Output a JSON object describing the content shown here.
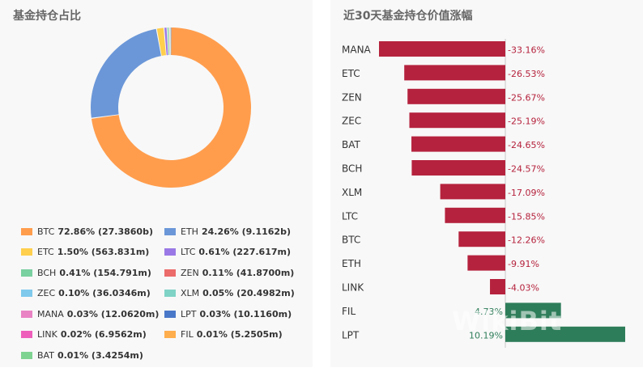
{
  "chart_data": [
    {
      "type": "pie",
      "title": "基金持仓占比",
      "slices": [
        {
          "name": "BTC",
          "percent": 72.86,
          "amount": "27.3860b",
          "color": "#ff9d4d"
        },
        {
          "name": "ETH",
          "percent": 24.26,
          "amount": "9.1162b",
          "color": "#6b97d8"
        },
        {
          "name": "ETC",
          "percent": 1.5,
          "amount": "563.831m",
          "color": "#ffcf4d"
        },
        {
          "name": "LTC",
          "percent": 0.61,
          "amount": "227.617m",
          "color": "#9a79e6"
        },
        {
          "name": "BCH",
          "percent": 0.41,
          "amount": "154.791m",
          "color": "#79d0a0"
        },
        {
          "name": "ZEN",
          "percent": 0.11,
          "amount": "41.8700m",
          "color": "#ec6b6b"
        },
        {
          "name": "ZEC",
          "percent": 0.1,
          "amount": "36.0346m",
          "color": "#7ec9ec"
        },
        {
          "name": "XLM",
          "percent": 0.05,
          "amount": "20.4982m",
          "color": "#7fd3c6"
        },
        {
          "name": "MANA",
          "percent": 0.03,
          "amount": "12.0620m",
          "color": "#e983c4"
        },
        {
          "name": "LPT",
          "percent": 0.03,
          "amount": "10.1160m",
          "color": "#4a78c9"
        },
        {
          "name": "LINK",
          "percent": 0.02,
          "amount": "6.9562m",
          "color": "#ee5fbb"
        },
        {
          "name": "FIL",
          "percent": 0.01,
          "amount": "5.2505m",
          "color": "#ffae4d"
        },
        {
          "name": "BAT",
          "percent": 0.01,
          "amount": "3.4254m",
          "color": "#7fd391"
        }
      ]
    },
    {
      "type": "bar",
      "orientation": "horizontal",
      "title": "近30天基金持仓价值涨幅",
      "categories": [
        "MANA",
        "ETC",
        "ZEN",
        "ZEC",
        "BAT",
        "BCH",
        "XLM",
        "LTC",
        "BTC",
        "ETH",
        "LINK",
        "FIL",
        "LPT"
      ],
      "values": [
        -33.16,
        -26.53,
        -25.67,
        -25.19,
        -24.65,
        -24.57,
        -17.09,
        -15.85,
        -12.26,
        -9.91,
        -4.03,
        4.73,
        10.19
      ],
      "labels": [
        "-33.16%",
        "-26.53%",
        "-25.67%",
        "-25.19%",
        "-24.65%",
        "-24.57%",
        "-17.09%",
        "-15.85%",
        "-12.26%",
        "-9.91%",
        "-4.03%",
        "4.73%",
        "10.19%"
      ],
      "colors": {
        "negative": "#b5223d",
        "positive": "#2e7d5a"
      },
      "xlim": [
        -33.16,
        10.19
      ]
    }
  ],
  "watermark": "WikiBit"
}
